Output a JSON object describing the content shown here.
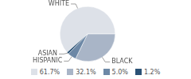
{
  "chart_data": {
    "type": "pie",
    "categories": [
      "WHITE",
      "BLACK",
      "HISPANIC",
      "ASIAN"
    ],
    "values": [
      61.7,
      32.1,
      5.0,
      1.2
    ],
    "value_labels": [
      "61.7%",
      "32.1%",
      "5.0%",
      "1.2%"
    ],
    "colors": [
      "#dde1e8",
      "#a9b5c7",
      "#6d88a6",
      "#2b5275"
    ],
    "legend": "bottom"
  }
}
